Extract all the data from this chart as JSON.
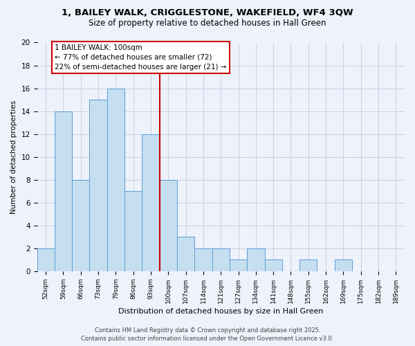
{
  "title1": "1, BAILEY WALK, CRIGGLESTONE, WAKEFIELD, WF4 3QW",
  "title2": "Size of property relative to detached houses in Hall Green",
  "xlabel": "Distribution of detached houses by size in Hall Green",
  "ylabel": "Number of detached properties",
  "bin_labels": [
    "52sqm",
    "59sqm",
    "66sqm",
    "73sqm",
    "79sqm",
    "86sqm",
    "93sqm",
    "100sqm",
    "107sqm",
    "114sqm",
    "121sqm",
    "127sqm",
    "134sqm",
    "141sqm",
    "148sqm",
    "155sqm",
    "162sqm",
    "169sqm",
    "175sqm",
    "182sqm",
    "189sqm"
  ],
  "bar_heights": [
    2,
    14,
    8,
    15,
    16,
    7,
    12,
    8,
    3,
    2,
    2,
    1,
    2,
    1,
    0,
    1,
    0,
    1,
    0,
    0,
    0
  ],
  "bar_color": "#c6dff0",
  "bar_edge_color": "#5b9bd5",
  "vline_x": 7.5,
  "vline_color": "#cc0000",
  "annotation_text": "1 BAILEY WALK: 100sqm\n← 77% of detached houses are smaller (72)\n22% of semi-detached houses are larger (21) →",
  "annotation_box_color": "#ffffff",
  "annotation_box_edge": "#cc0000",
  "ylim": [
    0,
    20
  ],
  "yticks": [
    0,
    2,
    4,
    6,
    8,
    10,
    12,
    14,
    16,
    18,
    20
  ],
  "footer1": "Contains HM Land Registry data © Crown copyright and database right 2025.",
  "footer2": "Contains public sector information licensed under the Open Government Licence v3.0.",
  "bg_color": "#eef2fa",
  "grid_color": "#c5cfe8",
  "ann_fontsize": 7.5,
  "title1_fontsize": 9.5,
  "title2_fontsize": 8.5,
  "ylabel_fontsize": 7.5,
  "xlabel_fontsize": 8.0,
  "tick_fontsize": 6.5,
  "ytick_fontsize": 7.5
}
